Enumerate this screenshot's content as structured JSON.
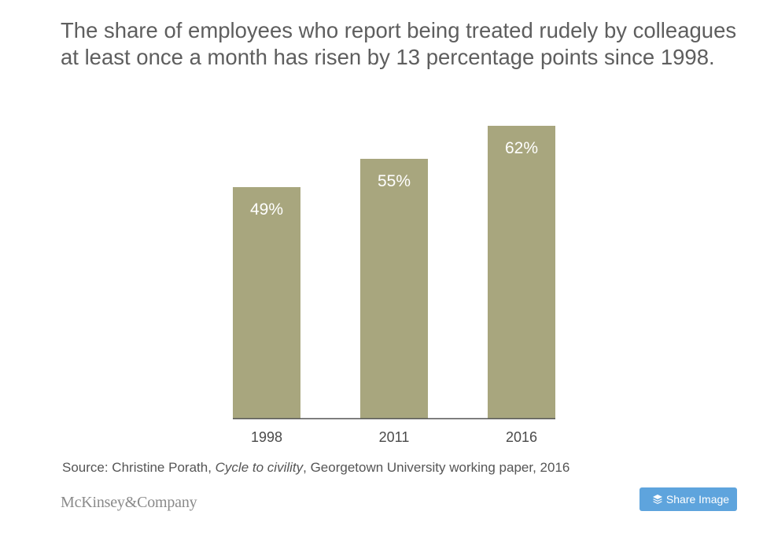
{
  "title": "The share of employees who report being treated rudely by colleagues at least once a month has risen by 13 percentage points since 1998.",
  "source": {
    "prefix": "Source: Christine Porath, ",
    "publication": "Cycle to civility",
    "suffix": ", Georgetown University working paper, 2016"
  },
  "logo_text": "McKinsey&Company",
  "share_button": {
    "label": "Share Image",
    "icon": "layers-icon"
  },
  "colors": {
    "bar": "#a8a67e",
    "bar_label": "#ffffff",
    "axis": "#555555",
    "tick_label": "#4a4a4a",
    "button": "#5ea4dd"
  },
  "chart_data": {
    "type": "bar",
    "categories": [
      "1998",
      "2011",
      "2016"
    ],
    "values": [
      49,
      55,
      62
    ],
    "value_labels": [
      "49%",
      "55%",
      "62%"
    ],
    "title": "The share of employees who report being treated rudely by colleagues at least once a month has risen by 13 percentage points since 1998.",
    "xlabel": "",
    "ylabel": "",
    "ylim": [
      0,
      62
    ],
    "unit": "%",
    "grid": false,
    "legend": "none"
  }
}
